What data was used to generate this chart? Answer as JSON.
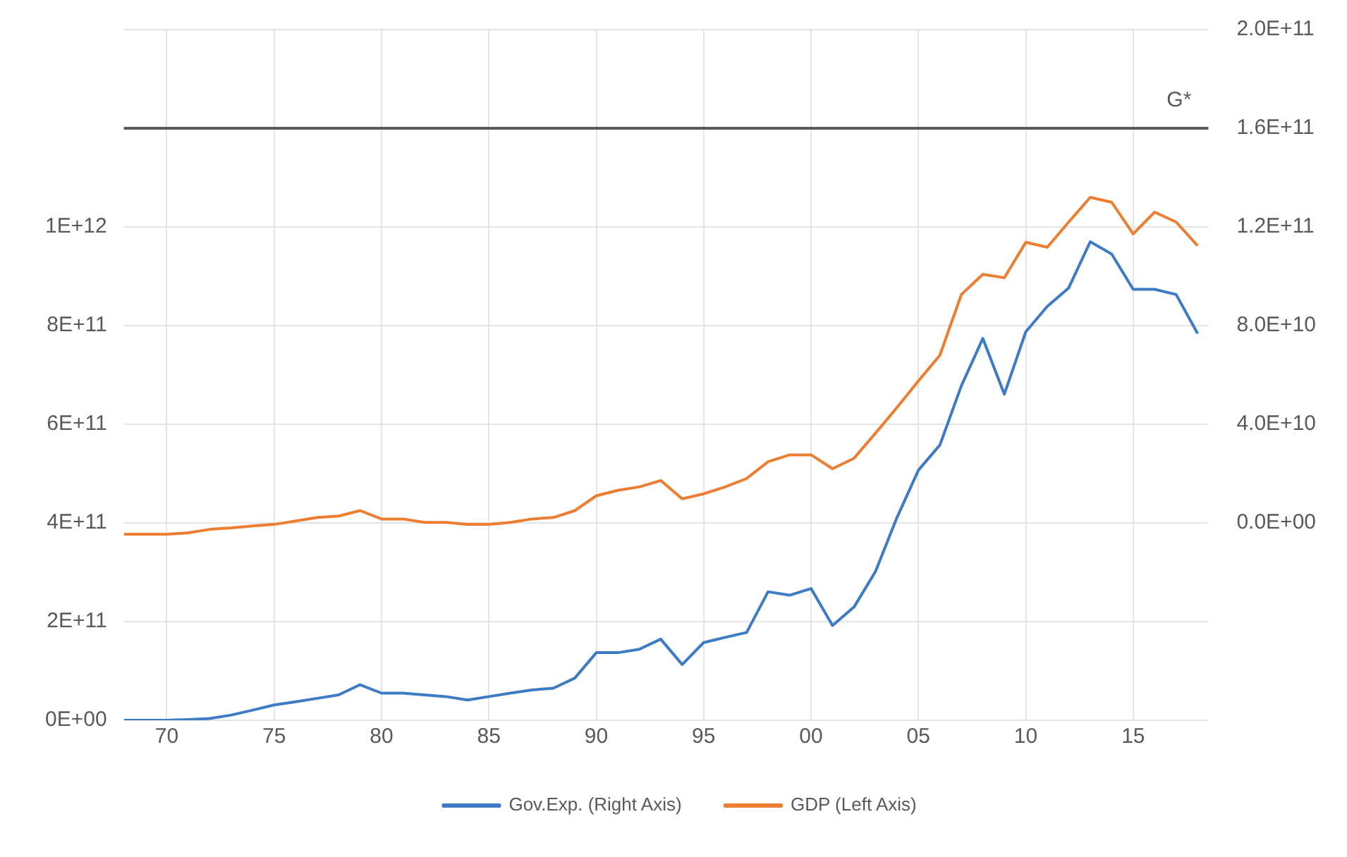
{
  "chart_data": {
    "type": "line",
    "x": [
      1968,
      1969,
      1970,
      1971,
      1972,
      1973,
      1974,
      1975,
      1976,
      1977,
      1978,
      1979,
      1980,
      1981,
      1982,
      1983,
      1984,
      1985,
      1986,
      1987,
      1988,
      1989,
      1990,
      1991,
      1992,
      1993,
      1994,
      1995,
      1996,
      1997,
      1998,
      1999,
      2000,
      2001,
      2002,
      2003,
      2004,
      2005,
      2006,
      2007,
      2008,
      2009,
      2010,
      2011,
      2012,
      2013,
      2014,
      2015,
      2016,
      2017,
      2018
    ],
    "series": [
      {
        "name": "Gov.Exp. (Right Axis)",
        "color": "#3d7cc4",
        "axis": "y2",
        "values": [
          -80000000000.0,
          -80000000000.0,
          -80000000000.0,
          -79700000000.0,
          -79300000000.0,
          -77900000000.0,
          -75900000000.0,
          -73800000000.0,
          -72500000000.0,
          -71100000000.0,
          -69700000000.0,
          -65600000000.0,
          -69000000000.0,
          -69000000000.0,
          -69700000000.0,
          -70400000000.0,
          -71800000000.0,
          -70400000000.0,
          -69000000000.0,
          -67700000000.0,
          -67000000000.0,
          -62900000000.0,
          -52600000000.0,
          -52600000000.0,
          -51200000000.0,
          -47100000000.0,
          -57400000000.0,
          -48500000000.0,
          -46400000000.0,
          -44400000000.0,
          -27900000000.0,
          -29300000000.0,
          -26600000000.0,
          -41600000000.0,
          -34100000000.0,
          -19700000000.0,
          2200000000.0,
          21400000000.0,
          31600000000.0,
          55600000000.0,
          74800000000.0,
          52200000000.0,
          77500000000.0,
          87800000000.0,
          95300000000.0,
          114000000000.0,
          109000000000.0,
          94700000000.0,
          94700000000.0,
          92600000000.0,
          76800000000.0
        ]
      },
      {
        "name": "GDP (Left Axis)",
        "color": "#ed7d31",
        "values": [
          377000000000.0,
          377000000000.0,
          377000000000.0,
          380000000000.0,
          387000000000.0,
          390000000000.0,
          394000000000.0,
          397000000000.0,
          404000000000.0,
          411000000000.0,
          414000000000.0,
          425000000000.0,
          408000000000.0,
          408000000000.0,
          401000000000.0,
          401000000000.0,
          397000000000.0,
          397000000000.0,
          401000000000.0,
          408000000000.0,
          411000000000.0,
          425000000000.0,
          455000000000.0,
          466000000000.0,
          473000000000.0,
          486000000000.0,
          449000000000.0,
          459000000000.0,
          473000000000.0,
          490000000000.0,
          524000000000.0,
          538000000000.0,
          538000000000.0,
          510000000000.0,
          531000000000.0,
          582000000000.0,
          634000000000.0,
          688000000000.0,
          740000000000.0,
          863000000000.0,
          904000000000.0,
          897000000000.0,
          969000000000.0,
          959000000000.0,
          1010000000000.0,
          1060000000000.0,
          1050000000000.0,
          986000000000.0,
          1030000000000.0,
          1010000000000.0,
          962000000000.0
        ]
      }
    ],
    "xlim": [
      1968,
      2018.5
    ],
    "xticks": [
      {
        "value": 1970,
        "label": "70"
      },
      {
        "value": 1975,
        "label": "75"
      },
      {
        "value": 1980,
        "label": "80"
      },
      {
        "value": 1985,
        "label": "85"
      },
      {
        "value": 1990,
        "label": "90"
      },
      {
        "value": 1995,
        "label": "95"
      },
      {
        "value": 2000,
        "label": "00"
      },
      {
        "value": 2005,
        "label": "05"
      },
      {
        "value": 2010,
        "label": "10"
      },
      {
        "value": 2015,
        "label": "15"
      }
    ],
    "ylim": [
      0,
      1400000000000.0
    ],
    "yticks": [
      {
        "value": 0,
        "label": "0E+00"
      },
      {
        "value": 200000000000.0,
        "label": "2E+11"
      },
      {
        "value": 400000000000.0,
        "label": "4E+11"
      },
      {
        "value": 600000000000.0,
        "label": "6E+11"
      },
      {
        "value": 800000000000.0,
        "label": "8E+11"
      },
      {
        "value": 1000000000000.0,
        "label": "1E+12"
      },
      {
        "value": 1200000000000.0,
        "label": null
      },
      {
        "value": 1400000000000.0,
        "label": null
      }
    ],
    "y2lim": [
      -80000000000.0,
      200000000000.0
    ],
    "y2ticks": [
      {
        "value": 0,
        "label": "0.0E+00"
      },
      {
        "value": 40000000000.0,
        "label": "4.0E+10"
      },
      {
        "value": 80000000000.0,
        "label": "8.0E+10"
      },
      {
        "value": 120000000000.0,
        "label": "1.2E+11"
      },
      {
        "value": 160000000000.0,
        "label": "1.6E+11"
      },
      {
        "value": 200000000000.0,
        "label": "2.0E+11"
      }
    ],
    "ref_lines": [
      {
        "axis": "y2",
        "value": 160000000000.0,
        "label": "G*",
        "color": "#595959"
      }
    ],
    "grid": true,
    "legend": "bottom"
  }
}
